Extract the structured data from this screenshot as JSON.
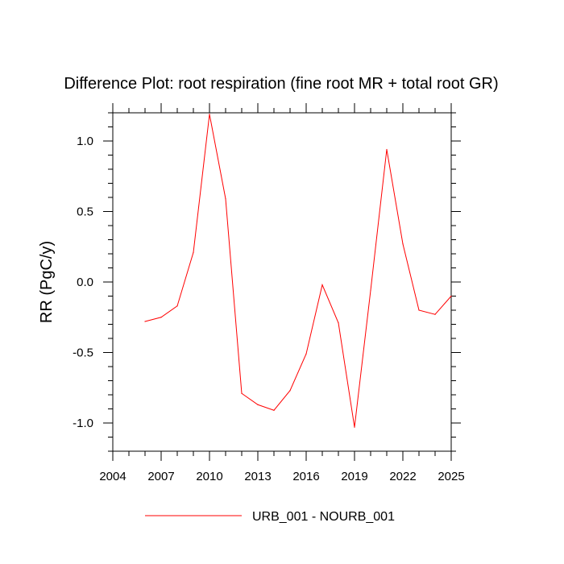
{
  "chart_data": {
    "type": "line",
    "title": "Difference Plot: root respiration (fine root MR + total root GR)",
    "xlabel": "",
    "ylabel": "RR  (PgC/y)",
    "xlim": [
      2004,
      2025
    ],
    "ylim": [
      -1.2,
      1.2
    ],
    "xticks": [
      2004,
      2007,
      2010,
      2013,
      2016,
      2019,
      2022,
      2025
    ],
    "xtick_labels": [
      "2004",
      "2007",
      "2010",
      "2013",
      "2016",
      "2019",
      "2022",
      "2025"
    ],
    "yticks": [
      1.0,
      0.5,
      0.0,
      -0.5,
      -1.0
    ],
    "ytick_labels": [
      "1.0",
      "0.5",
      "0.0",
      "-0.5",
      "-1.0"
    ],
    "grid": false,
    "legend_position": "bottom-center",
    "series": [
      {
        "name": "URB_001 - NOURB_001",
        "color": "#ff0000",
        "x": [
          2006,
          2007,
          2008,
          2009,
          2010,
          2011,
          2012,
          2013,
          2014,
          2015,
          2016,
          2017,
          2018,
          2019,
          2020,
          2021,
          2022,
          2023,
          2024,
          2025
        ],
        "values": [
          -0.28,
          -0.25,
          -0.17,
          0.21,
          1.19,
          0.59,
          -0.79,
          -0.87,
          -0.91,
          -0.77,
          -0.51,
          -0.02,
          -0.29,
          -1.03,
          -0.06,
          0.94,
          0.27,
          -0.2,
          -0.23,
          -0.1
        ]
      }
    ]
  }
}
